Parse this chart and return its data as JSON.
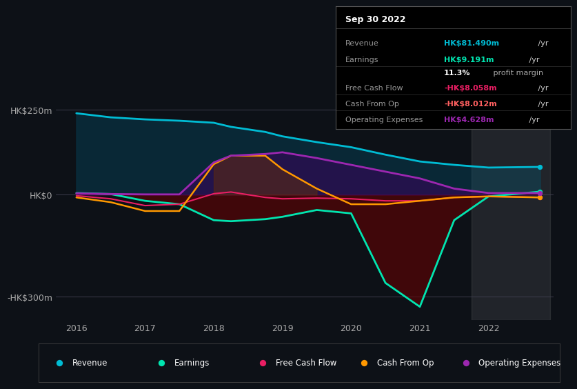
{
  "background_color": "#0d1117",
  "plot_bg_color": "#0d1117",
  "title": "Sep 30 2022",
  "years": [
    2016,
    2016.5,
    2017,
    2017.5,
    2018,
    2018.25,
    2018.75,
    2019,
    2019.5,
    2020,
    2020.5,
    2021,
    2021.5,
    2022,
    2022.75
  ],
  "revenue": [
    240,
    228,
    222,
    218,
    212,
    200,
    185,
    172,
    155,
    140,
    118,
    98,
    88,
    80,
    82
  ],
  "earnings": [
    5,
    2,
    -18,
    -28,
    -75,
    -78,
    -72,
    -65,
    -45,
    -55,
    -260,
    -330,
    -75,
    -5,
    9
  ],
  "free_cash_flow": [
    -3,
    -12,
    -32,
    -28,
    3,
    8,
    -8,
    -12,
    -10,
    -12,
    -18,
    -18,
    -8,
    -5,
    -8
  ],
  "cash_from_op": [
    -8,
    -22,
    -48,
    -48,
    90,
    115,
    115,
    75,
    18,
    -28,
    -28,
    -18,
    -8,
    -5,
    -8
  ],
  "operating_expenses": [
    4,
    2,
    1,
    1,
    95,
    115,
    120,
    125,
    108,
    88,
    68,
    48,
    18,
    5,
    5
  ],
  "revenue_color": "#00bcd4",
  "earnings_color": "#00e5b0",
  "fcf_color": "#e91e63",
  "cashop_color": "#ff9800",
  "opex_color": "#9c27b0",
  "ylim": [
    -370,
    290
  ],
  "yticks": [
    -300,
    0,
    250
  ],
  "ytick_labels": [
    "-HK$300m",
    "HK$0",
    "HK$250m"
  ],
  "xticks": [
    2016,
    2017,
    2018,
    2019,
    2020,
    2021,
    2022
  ],
  "info_box": {
    "date": "Sep 30 2022",
    "rows": [
      {
        "label": "Revenue",
        "value": "HK$81.490m",
        "value_color": "#00bcd4",
        "suffix": " /yr"
      },
      {
        "label": "Earnings",
        "value": "HK$9.191m",
        "value_color": "#00e5b0",
        "suffix": " /yr"
      },
      {
        "label": "",
        "value": "11.3%",
        "value_color": "#ffffff",
        "suffix": " profit margin",
        "suffix_color": "#aaaaaa"
      },
      {
        "label": "Free Cash Flow",
        "value": "-HK$8.058m",
        "value_color": "#e91e63",
        "suffix": " /yr"
      },
      {
        "label": "Cash From Op",
        "value": "-HK$8.012m",
        "value_color": "#ff6060",
        "suffix": " /yr"
      },
      {
        "label": "Operating Expenses",
        "value": "HK$4.628m",
        "value_color": "#9c27b0",
        "suffix": " /yr"
      }
    ]
  },
  "legend_items": [
    {
      "label": "Revenue",
      "color": "#00bcd4"
    },
    {
      "label": "Earnings",
      "color": "#00e5b0"
    },
    {
      "label": "Free Cash Flow",
      "color": "#e91e63"
    },
    {
      "label": "Cash From Op",
      "color": "#ff9800"
    },
    {
      "label": "Operating Expenses",
      "color": "#9c27b0"
    }
  ]
}
